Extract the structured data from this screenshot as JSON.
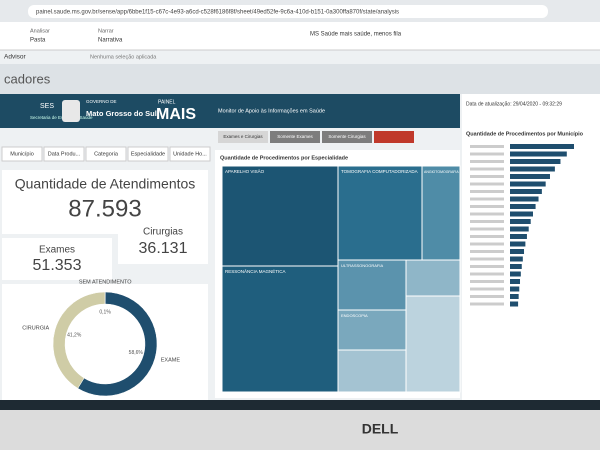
{
  "browser": {
    "url": "painel.saude.ms.gov.br/sense/app/6bbe1f15-c67c-4e93-a6cd-c528f6186f8f/sheet/49ed52fe-9c6a-410d-b151-0a300ffa870f/state/analysis"
  },
  "ribbon": {
    "analyze": "Analisar",
    "sheet": "Pasta",
    "narrate": "Narrar",
    "narrative": "Narrativa",
    "app_name": "MS Saúde mais saúde, menos fila",
    "selection": "Nenhuma seleção aplicada",
    "advisor": "Advisor"
  },
  "sheet_title": "cadores",
  "header": {
    "ses": "SES",
    "ses_sub": "Secretaria de Estado de Saúde",
    "gov": "GOVERNO DE",
    "state": "Mato Grosso do Sul",
    "panel": "PAINEL",
    "brand": "MAIS",
    "brand_sub": "Monitor de Apoio às Informações em Saúde"
  },
  "filters": [
    "Município",
    "Data Produ...",
    "Categoria",
    "Especialidade",
    "Unidade Ho..."
  ],
  "tabs": [
    "Exames e Cirurgias",
    "Somente Exames",
    "Somente Cirurgias"
  ],
  "update_label": "Data de atualização: 29/04/2020 - 09:32:29",
  "kpis": {
    "total_label": "Quantidade de Atendimentos",
    "total": "87.593",
    "exams_label": "Exames",
    "exams": "51.353",
    "surgeries_label": "Cirurgias",
    "surgeries": "36.131"
  },
  "treemap": {
    "title": "Quantidade de Procedimentos por Especialidade",
    "labels": [
      "APARELHO VISÃO",
      "TOMOGRAFIA COMPUTADORIZADA",
      "RESSONÂNCIA MAGNÉTICA",
      "ULTRASSONOGRAFIA",
      "ENDOSCOPIA",
      "ANGIOTOMOGRAFIA"
    ]
  },
  "bar_panel": {
    "title": "Quantidade de Procedimentos por Município"
  },
  "chart_data": {
    "type": "pie",
    "donut": true,
    "categories": [
      "SEM ATENDIMENTO",
      "EXAME",
      "CIRURGIA"
    ],
    "values": [
      0.1,
      58.6,
      41.2
    ],
    "value_labels": [
      "0,1%",
      "58,6%",
      "41,2%"
    ],
    "colors": [
      "#9aa3a8",
      "#1f4e6e",
      "#cfcca6"
    ]
  },
  "monitor": {
    "brand": "DELL"
  }
}
